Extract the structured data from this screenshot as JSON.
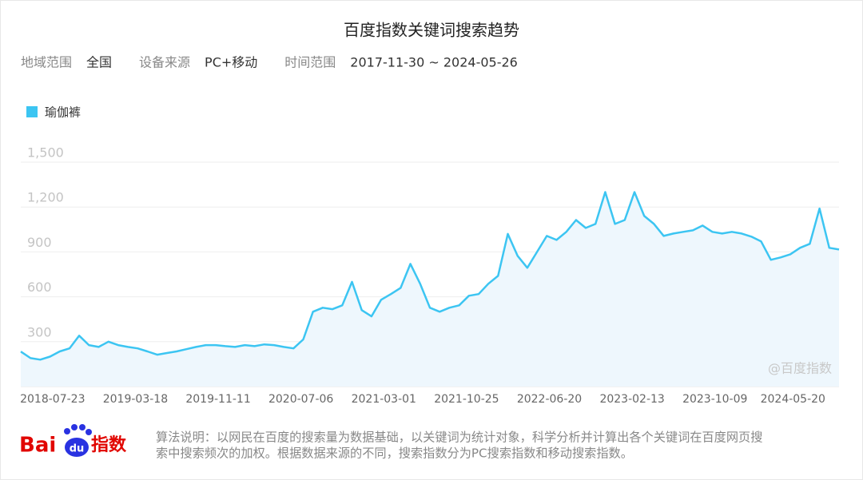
{
  "header": {
    "title": "百度指数关键词搜索趋势",
    "filters": [
      {
        "label": "地域范围",
        "value": "全国"
      },
      {
        "label": "设备来源",
        "value": "PC+移动"
      },
      {
        "label": "时间范围",
        "value": "2017-11-30 ~ 2024-05-26"
      }
    ]
  },
  "chart_data": {
    "type": "line",
    "watermark": "@百度指数",
    "area": true,
    "grid": true,
    "x": [
      "2018-03-26",
      "2018-04-23",
      "2018-05-21",
      "2018-06-18",
      "2018-07-16",
      "2018-08-13",
      "2018-09-10",
      "2018-10-08",
      "2018-11-05",
      "2018-12-03",
      "2018-12-31",
      "2019-01-28",
      "2019-02-25",
      "2019-03-25",
      "2019-04-22",
      "2019-05-20",
      "2019-06-17",
      "2019-07-15",
      "2019-08-12",
      "2019-09-09",
      "2019-10-07",
      "2019-11-04",
      "2019-12-02",
      "2019-12-30",
      "2020-01-27",
      "2020-02-24",
      "2020-03-23",
      "2020-04-20",
      "2020-05-18",
      "2020-06-15",
      "2020-07-13",
      "2020-08-10",
      "2020-09-07",
      "2020-10-05",
      "2020-11-02",
      "2020-11-30",
      "2020-12-28",
      "2021-01-25",
      "2021-02-22",
      "2021-03-22",
      "2021-04-19",
      "2021-05-17",
      "2021-06-14",
      "2021-07-12",
      "2021-08-09",
      "2021-09-06",
      "2021-10-04",
      "2021-11-01",
      "2021-11-29",
      "2021-12-27",
      "2022-01-24",
      "2022-02-21",
      "2022-03-21",
      "2022-04-18",
      "2022-05-16",
      "2022-06-13",
      "2022-07-11",
      "2022-08-08",
      "2022-09-05",
      "2022-10-03",
      "2022-10-31",
      "2022-11-28",
      "2022-12-26",
      "2023-01-23",
      "2023-02-20",
      "2023-03-20",
      "2023-04-17",
      "2023-05-15",
      "2023-06-12",
      "2023-07-10",
      "2023-08-07",
      "2023-09-04",
      "2023-10-02",
      "2023-10-30",
      "2023-11-27",
      "2023-12-25",
      "2024-01-22",
      "2024-02-19",
      "2024-03-18",
      "2024-04-15",
      "2024-05-13",
      "2024-06-10",
      "2024-07-08",
      "2024-08-05",
      "2024-09-02"
    ],
    "series": [
      {
        "name": "瑜伽裤",
        "color": "#3cc5f2",
        "values": [
          234,
          190,
          180,
          200,
          235,
          255,
          340,
          277,
          265,
          300,
          277,
          265,
          255,
          235,
          213,
          224,
          235,
          250,
          265,
          277,
          277,
          270,
          265,
          277,
          270,
          282,
          277,
          265,
          255,
          315,
          500,
          527,
          517,
          543,
          700,
          511,
          469,
          580,
          618,
          660,
          820,
          687,
          527,
          500,
          527,
          543,
          607,
          618,
          687,
          740,
          1020,
          874,
          794,
          900,
          1007,
          980,
          1034,
          1113,
          1060,
          1087,
          1300,
          1087,
          1113,
          1300,
          1140,
          1087,
          1007,
          1023,
          1034,
          1044,
          1076,
          1034,
          1023,
          1034,
          1023,
          1002,
          970,
          847,
          863,
          884,
          927,
          954,
          1190,
          927,
          916
        ]
      }
    ],
    "xlim": [
      "2018-03-26",
      "2024-09-02"
    ],
    "xticks": [
      "2018-07-23",
      "2019-03-18",
      "2019-11-11",
      "2020-07-06",
      "2021-03-01",
      "2021-10-25",
      "2022-06-20",
      "2023-02-13",
      "2023-10-09",
      "2024-05-20"
    ],
    "ylim": [
      0,
      1500
    ],
    "yticks": [
      300,
      600,
      900,
      {
        "value": 1200,
        "label": "1,200"
      },
      {
        "value": 1500,
        "label": "1,500"
      }
    ]
  },
  "footer": {
    "logo": {
      "bai": "Bai",
      "du": "du",
      "index": "指数"
    },
    "note": [
      "算法说明：以网民在百度的搜索量为数据基础，以关键词为统计对象，科学分析并计算出各个关键词在百度网页搜",
      "索中搜索频次的加权。根据数据来源的不同，搜索指数分为PC搜索指数和移动搜索指数。"
    ]
  }
}
